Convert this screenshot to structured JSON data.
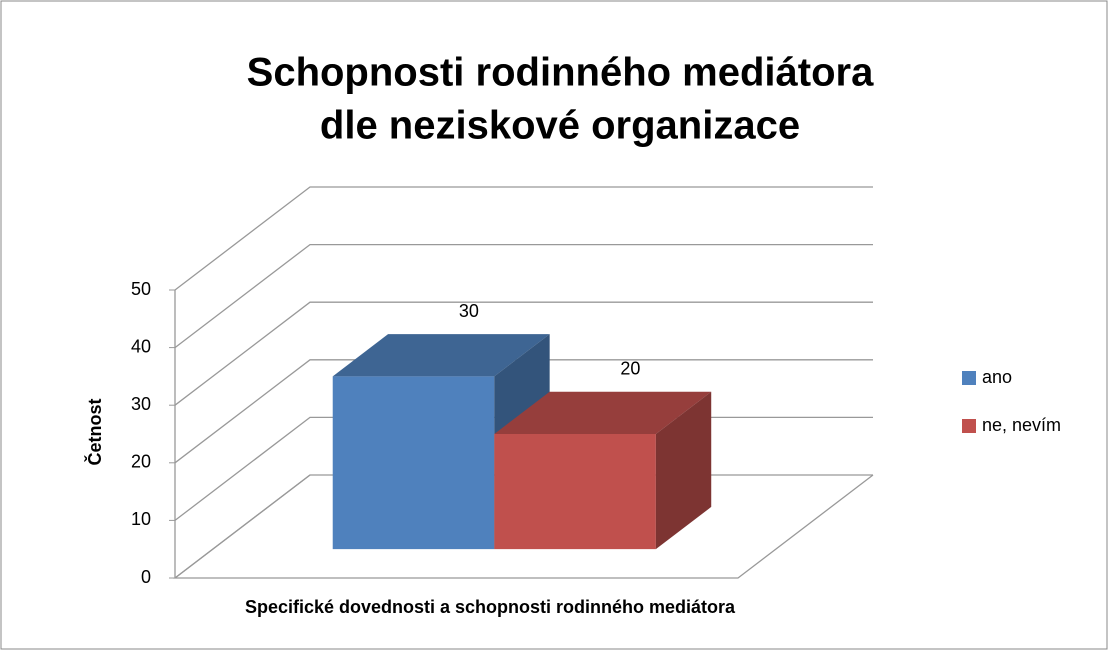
{
  "chart_data": {
    "type": "bar3d",
    "title": [
      "Schopnosti rodinného mediátora",
      "dle neziskové organizace"
    ],
    "x_label": "Specifické dovednosti a schopnosti rodinného mediátora",
    "y_label": "Četnost",
    "series": [
      {
        "name": "ano",
        "color": "#4f81bd",
        "values": [
          30
        ]
      },
      {
        "name": "ne, nevím",
        "color": "#c0504d",
        "values": [
          20
        ]
      }
    ],
    "ylim": [
      0,
      50
    ],
    "yticks": [
      0,
      10,
      20,
      30,
      40,
      50
    ],
    "grid": true,
    "legend": "right"
  }
}
